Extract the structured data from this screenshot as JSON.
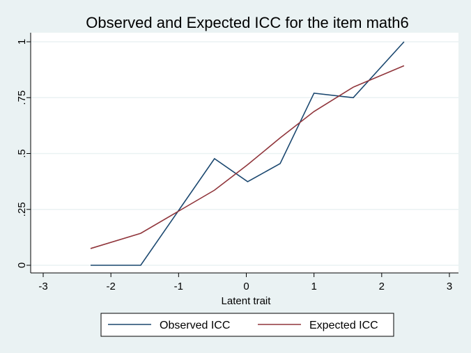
{
  "chart_data": {
    "type": "line",
    "title": "Observed and Expected ICC for the item math6",
    "xlabel": "Latent trait",
    "ylabel": "",
    "xlim": [
      -3,
      3
    ],
    "ylim": [
      0,
      1
    ],
    "xticks": [
      -3,
      -2,
      -1,
      0,
      1,
      2,
      3
    ],
    "xtick_labels": [
      "-3",
      "-2",
      "-1",
      "0",
      "1",
      "2",
      "3"
    ],
    "yticks": [
      0,
      0.25,
      0.5,
      0.75,
      1
    ],
    "ytick_labels": [
      "0",
      ".25",
      ".5",
      ".75",
      "1"
    ],
    "grid": true,
    "legend_position": "bottom",
    "x": [
      -2.3,
      -1.56,
      -0.47,
      0.02,
      0.5,
      1.0,
      1.58,
      2.33
    ],
    "series": [
      {
        "name": "Observed ICC",
        "color": "#1a476f",
        "values": [
          0,
          0,
          0.477,
          0.374,
          0.455,
          0.77,
          0.75,
          1.0
        ]
      },
      {
        "name": "Expected ICC",
        "color": "#90353b",
        "values": [
          0.075,
          0.143,
          0.336,
          0.45,
          0.57,
          0.688,
          0.797,
          0.893
        ]
      }
    ]
  }
}
